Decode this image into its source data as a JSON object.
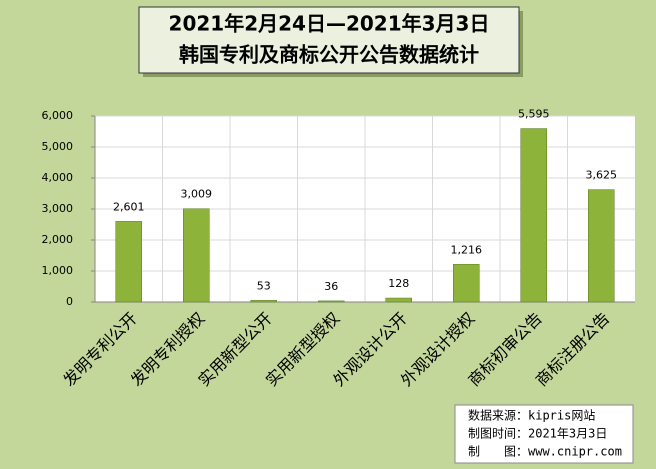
{
  "chart_data": {
    "type": "bar",
    "title": "2021年2月24日—2021年3月3日",
    "subtitle": "韩国专利及商标公开公告数据统计",
    "categories": [
      "发明专利公开",
      "发明专利授权",
      "实用新型公开",
      "实用新型授权",
      "外观设计公开",
      "外观设计授权",
      "商标初审公告",
      "商标注册公告"
    ],
    "values": [
      2601,
      3009,
      53,
      36,
      128,
      1216,
      5595,
      3625
    ],
    "value_labels": [
      "2,601",
      "3,009",
      "53",
      "36",
      "128",
      "1,216",
      "5,595",
      "3,625"
    ],
    "color": "#8db33a",
    "ylim": [
      0,
      6000
    ],
    "yticks": [
      0,
      {
        "value": 1000,
        "label": "1,000"
      },
      {
        "value": 2000,
        "label": "2,000"
      },
      {
        "value": 3000,
        "label": "3,000"
      },
      {
        "value": 4000,
        "label": "4,000"
      },
      {
        "value": 5000,
        "label": "5,000"
      },
      {
        "value": 6000,
        "label": "6,000"
      }
    ],
    "grid": true,
    "source": [
      "数据来源：kipris网站",
      "制图时间：2021年3月3日",
      "制　　图：www.cnipr.com"
    ]
  }
}
